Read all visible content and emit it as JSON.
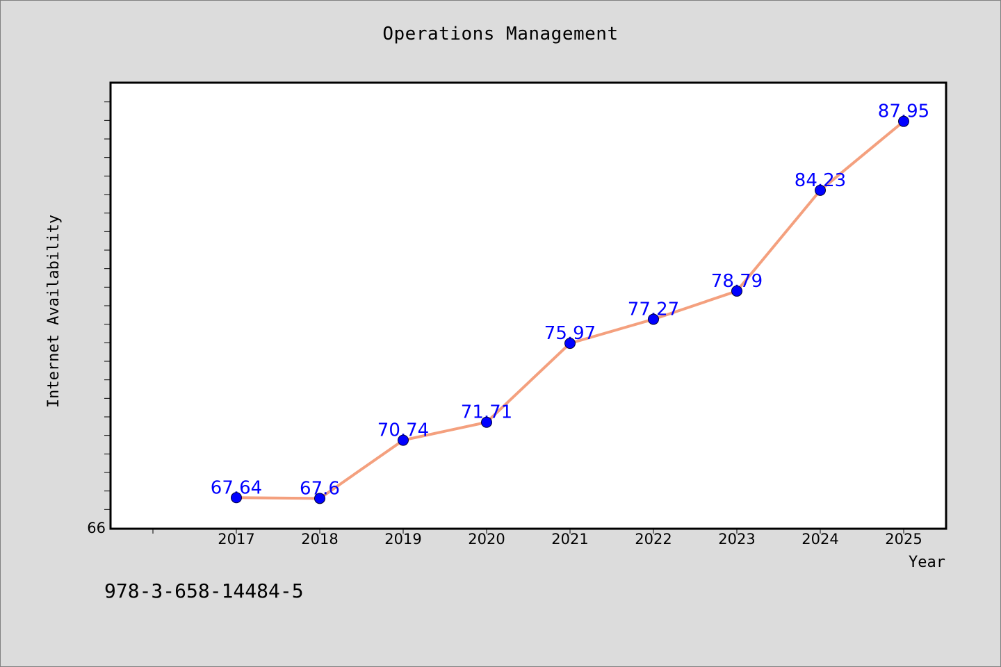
{
  "title": "Operations Management",
  "footnote": "978-3-658-14484-5",
  "colors": {
    "background": "#dcdcdc",
    "plot_background": "#ffffff",
    "line": "#f4a07e",
    "marker": "#0000ff",
    "data_label": "#0000ff"
  },
  "chart_data": {
    "type": "line",
    "title": "Operations Management",
    "xlabel": "Year",
    "ylabel": "Internet Availability",
    "categories": [
      "2017",
      "2018",
      "2019",
      "2020",
      "2021",
      "2022",
      "2023",
      "2024",
      "2025"
    ],
    "series": [
      {
        "values": [
          67.64,
          67.6,
          70.74,
          71.71,
          75.97,
          77.27,
          78.79,
          84.23,
          87.95
        ],
        "data_labels": [
          "67.64",
          "67.6",
          "70.74",
          "71.71",
          "75.97",
          "77.27",
          "78.79",
          "84.23",
          "87.95"
        ]
      }
    ],
    "y_tick_labels": [
      "66"
    ],
    "ylim": [
      66,
      90
    ],
    "y_minor_tick_step": 1,
    "grid": false,
    "legend": "none",
    "marker": "circle"
  }
}
